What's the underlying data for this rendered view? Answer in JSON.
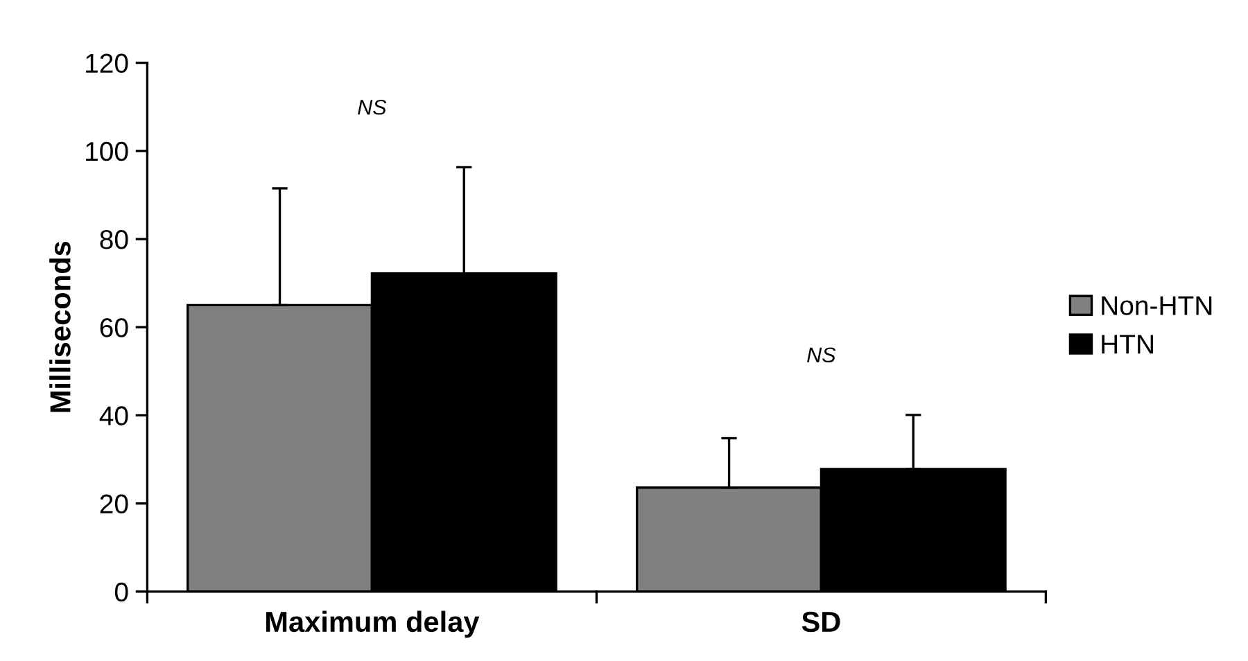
{
  "chart_data": {
    "type": "bar",
    "ylabel": "Milliseconds",
    "categories": [
      "Maximum delay",
      "SD"
    ],
    "series": [
      {
        "name": "Non-HTN",
        "color": "#808080",
        "values": [
          65,
          23.6
        ],
        "errors": [
          [
            65,
            91.5
          ],
          [
            23.6,
            34.8
          ]
        ]
      },
      {
        "name": "HTN",
        "color": "#000000",
        "values": [
          72.2,
          27.8
        ],
        "errors": [
          [
            72.2,
            96.3
          ],
          [
            27.8,
            40.1
          ]
        ]
      }
    ],
    "ylim": [
      0,
      120
    ],
    "yticks": [
      0,
      20,
      40,
      60,
      80,
      100,
      120
    ],
    "annotations": [
      "NS",
      "NS"
    ],
    "grid": false,
    "legend": "right"
  }
}
